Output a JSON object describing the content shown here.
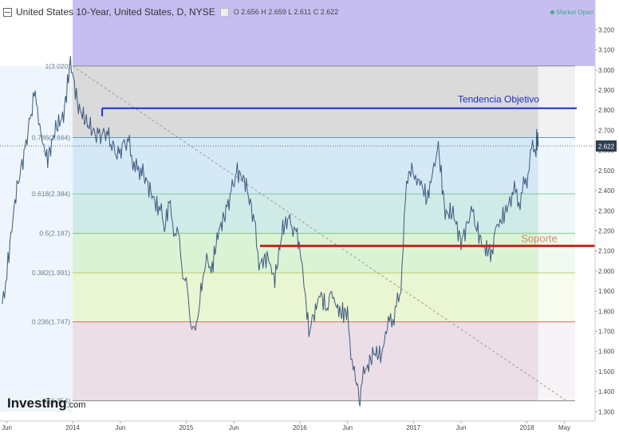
{
  "header": {
    "symbol_title": "United States 10-Year, United States, D, NYSE",
    "ohlc": "O 2.656 H 2.659 L 2.611 C 2.622",
    "market_status": "Market Open"
  },
  "logo": {
    "name": "Investing",
    "suffix": ".com"
  },
  "colors": {
    "price_line": "#3d5a80",
    "trend_line": "#1c2ec9",
    "support_line": "#c0281f",
    "bands": [
      "#bcb3ee",
      "#d8d8d8",
      "#d3e7f6",
      "#cde9e6",
      "#d8f2d3",
      "#e9f6cf",
      "#eadce6"
    ]
  },
  "chart_data": {
    "type": "line",
    "ylim": [
      1.2535,
      3.3485
    ],
    "y_ticks": [
      "3.200",
      "3.100",
      "3.000",
      "2.900",
      "2.800",
      "2.700",
      "2.600",
      "2.500",
      "2.400",
      "2.300",
      "2.200",
      "2.100",
      "2.000",
      "1.900",
      "1.800",
      "1.700",
      "1.600",
      "1.500",
      "1.400",
      "1.300"
    ],
    "x_ticks": [
      "Jun",
      "2014",
      "Jun",
      "2015",
      "Jun",
      "2016",
      "Jun",
      "2017",
      "Jun",
      "2018",
      "May"
    ],
    "current_price_label": "2.622",
    "price_waypoints": [
      [
        2013.38,
        1.85
      ],
      [
        2013.43,
        2.05
      ],
      [
        2013.5,
        2.4
      ],
      [
        2013.58,
        2.6
      ],
      [
        2013.67,
        2.85
      ],
      [
        2013.72,
        2.7
      ],
      [
        2013.78,
        2.6
      ],
      [
        2013.85,
        2.75
      ],
      [
        2013.92,
        2.8
      ],
      [
        2013.98,
        3.02
      ],
      [
        2014.05,
        2.78
      ],
      [
        2014.12,
        2.7
      ],
      [
        2014.2,
        2.65
      ],
      [
        2014.3,
        2.74
      ],
      [
        2014.4,
        2.55
      ],
      [
        2014.5,
        2.62
      ],
      [
        2014.55,
        2.48
      ],
      [
        2014.6,
        2.56
      ],
      [
        2014.68,
        2.44
      ],
      [
        2014.75,
        2.35
      ],
      [
        2014.8,
        2.18
      ],
      [
        2014.86,
        2.32
      ],
      [
        2014.9,
        2.2
      ],
      [
        2014.95,
        2.08
      ],
      [
        2015.0,
        1.95
      ],
      [
        2015.04,
        1.75
      ],
      [
        2015.08,
        1.64
      ],
      [
        2015.12,
        1.92
      ],
      [
        2015.18,
        2.1
      ],
      [
        2015.22,
        1.95
      ],
      [
        2015.28,
        2.2
      ],
      [
        2015.35,
        2.32
      ],
      [
        2015.45,
        2.45
      ],
      [
        2015.52,
        2.4
      ],
      [
        2015.6,
        2.2
      ],
      [
        2015.65,
        2.05
      ],
      [
        2015.72,
        2.1
      ],
      [
        2015.78,
        2.0
      ],
      [
        2015.85,
        2.25
      ],
      [
        2015.92,
        2.3
      ],
      [
        2015.96,
        2.2
      ],
      [
        2016.02,
        2.05
      ],
      [
        2016.08,
        1.75
      ],
      [
        2016.12,
        1.72
      ],
      [
        2016.18,
        1.86
      ],
      [
        2016.25,
        1.78
      ],
      [
        2016.3,
        1.9
      ],
      [
        2016.36,
        1.8
      ],
      [
        2016.42,
        1.75
      ],
      [
        2016.46,
        1.6
      ],
      [
        2016.5,
        1.4
      ],
      [
        2016.53,
        1.36
      ],
      [
        2016.58,
        1.5
      ],
      [
        2016.65,
        1.58
      ],
      [
        2016.72,
        1.55
      ],
      [
        2016.78,
        1.7
      ],
      [
        2016.83,
        1.77
      ],
      [
        2016.88,
        1.9
      ],
      [
        2016.93,
        2.3
      ],
      [
        2016.97,
        2.55
      ],
      [
        2017.0,
        2.45
      ],
      [
        2017.05,
        2.5
      ],
      [
        2017.12,
        2.4
      ],
      [
        2017.18,
        2.55
      ],
      [
        2017.22,
        2.58
      ],
      [
        2017.28,
        2.3
      ],
      [
        2017.35,
        2.32
      ],
      [
        2017.42,
        2.18
      ],
      [
        2017.5,
        2.3
      ],
      [
        2017.55,
        2.25
      ],
      [
        2017.62,
        2.12
      ],
      [
        2017.68,
        2.06
      ],
      [
        2017.72,
        2.25
      ],
      [
        2017.78,
        2.3
      ],
      [
        2017.85,
        2.38
      ],
      [
        2017.9,
        2.35
      ],
      [
        2017.95,
        2.4
      ],
      [
        2018.0,
        2.45
      ],
      [
        2018.04,
        2.57
      ],
      [
        2018.08,
        2.66
      ],
      [
        2018.1,
        2.622
      ]
    ]
  },
  "fibonacci": {
    "levels": [
      {
        "label": "1(3.020)",
        "value": 3.02
      },
      {
        "label": "0.786(2.664)",
        "value": 2.664
      },
      {
        "label": "0.618(2.384)",
        "value": 2.384
      },
      {
        "label": "0.5(2.187)",
        "value": 2.187
      },
      {
        "label": "0.382(1.991)",
        "value": 1.991
      },
      {
        "label": "0.236(1.747)",
        "value": 1.747
      },
      {
        "label": "0(1.354)",
        "value": 1.354
      }
    ],
    "x_start": 2014.0,
    "x_end": 2018.1
  },
  "annotations": {
    "trend_label": "Tendencia Objetivo",
    "trend_level": 2.81,
    "trend_x_start": 2014.26,
    "support_label": "Soporte",
    "support_level": 2.125,
    "support_x_start": 2015.65,
    "diagonal": {
      "x1": 2014.0,
      "y1": 3.02,
      "x2": 2018.35,
      "y2": 1.354
    }
  }
}
